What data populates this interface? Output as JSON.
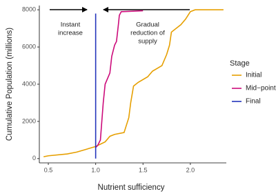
{
  "chart_data": {
    "type": "line",
    "x_label": "Nutrient sufficiency",
    "y_label": "Cumulative Population (millions)",
    "legend_title": "Stage",
    "legend_position": "right",
    "grid": false,
    "xlim": [
      0.405,
      2.38
    ],
    "ylim": [
      -230,
      8230
    ],
    "xticks": [
      0.5,
      {
        "value": 1,
        "label": "1.0"
      },
      1.5,
      {
        "value": 2,
        "label": "2.0"
      }
    ],
    "yticks": [
      0,
      2000,
      4000,
      6000,
      8000
    ],
    "annotations": [
      [
        "Instant",
        "increase"
      ],
      [
        "Gradual",
        "reduction of",
        "supply"
      ]
    ],
    "series": [
      {
        "name": "Initial",
        "color": "#E69F00",
        "x": [
          0.45,
          0.5,
          0.7,
          0.8,
          0.9,
          1.0,
          1.1,
          1.15,
          1.2,
          1.3,
          1.35,
          1.37,
          1.4,
          1.45,
          1.55,
          1.6,
          1.7,
          1.75,
          1.78,
          1.8,
          1.85,
          1.9,
          1.95,
          2.0,
          2.05,
          2.35
        ],
        "values": [
          100,
          150,
          250,
          350,
          500,
          650,
          900,
          1200,
          1300,
          1400,
          2200,
          3000,
          3900,
          4100,
          4400,
          4700,
          5000,
          5600,
          6100,
          6800,
          7000,
          7200,
          7500,
          7900,
          8000,
          8000
        ]
      },
      {
        "name": "Mid−point",
        "color": "#CC0A7A",
        "x": [
          1.0,
          1.02,
          1.05,
          1.08,
          1.1,
          1.15,
          1.17,
          1.2,
          1.22,
          1.24,
          1.25,
          1.27,
          1.5
        ],
        "values": [
          600,
          700,
          1000,
          3000,
          4000,
          4600,
          5500,
          6100,
          6300,
          7200,
          7700,
          7900,
          7950
        ]
      },
      {
        "name": "Final",
        "color": "#2233BB",
        "x": [
          1.0,
          1.0
        ],
        "values": [
          0,
          7800
        ]
      }
    ]
  }
}
